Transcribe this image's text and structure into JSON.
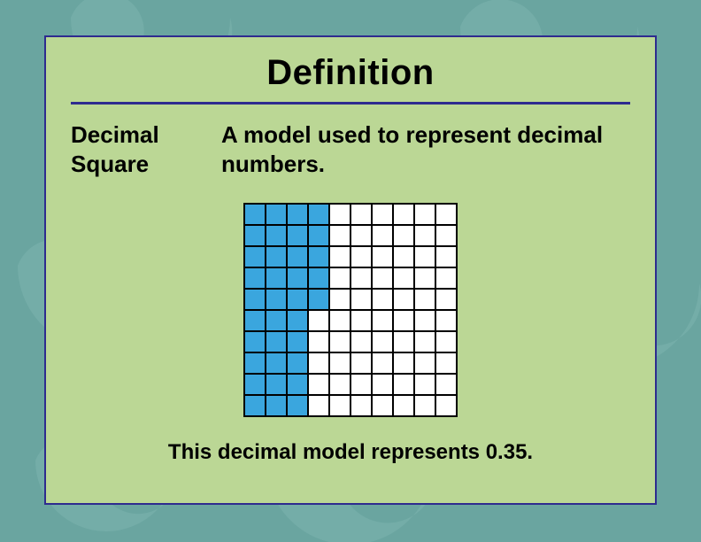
{
  "background": {
    "base_color": "#6aa5a0",
    "shape_color": "#7cb3ad",
    "shape_opacity": 0.6
  },
  "card": {
    "background_color": "#bbd795",
    "border_color": "#2e2b8f",
    "border_width": 2,
    "divider_color": "#2e2b8f",
    "divider_thickness": 3
  },
  "title": {
    "text": "Definition",
    "fontsize": 40,
    "fontweight": "bold",
    "color": "#000000"
  },
  "term": {
    "line1": "Decimal",
    "line2": "Square",
    "fontsize": 26,
    "fontweight": "bold",
    "color": "#000000"
  },
  "definition": {
    "text": "A model used to represent decimal numbers.",
    "fontsize": 26,
    "fontweight": "bold",
    "color": "#000000"
  },
  "decimal_grid": {
    "type": "heatmap",
    "rows": 10,
    "cols": 10,
    "cell_size": 24,
    "cell_border_color": "#000000",
    "filled_color": "#3aa6de",
    "unfilled_color": "#ffffff",
    "filled_cells_count": 35,
    "layout": "column_major_top_to_bottom",
    "filled_coords": [
      [
        0,
        0
      ],
      [
        1,
        0
      ],
      [
        2,
        0
      ],
      [
        3,
        0
      ],
      [
        4,
        0
      ],
      [
        5,
        0
      ],
      [
        6,
        0
      ],
      [
        7,
        0
      ],
      [
        8,
        0
      ],
      [
        9,
        0
      ],
      [
        0,
        1
      ],
      [
        1,
        1
      ],
      [
        2,
        1
      ],
      [
        3,
        1
      ],
      [
        4,
        1
      ],
      [
        5,
        1
      ],
      [
        6,
        1
      ],
      [
        7,
        1
      ],
      [
        8,
        1
      ],
      [
        9,
        1
      ],
      [
        0,
        2
      ],
      [
        1,
        2
      ],
      [
        2,
        2
      ],
      [
        3,
        2
      ],
      [
        4,
        2
      ],
      [
        5,
        2
      ],
      [
        6,
        2
      ],
      [
        7,
        2
      ],
      [
        8,
        2
      ],
      [
        9,
        2
      ],
      [
        0,
        3
      ],
      [
        1,
        3
      ],
      [
        2,
        3
      ],
      [
        3,
        3
      ],
      [
        4,
        3
      ]
    ]
  },
  "caption": {
    "text": "This decimal model represents 0.35.",
    "fontsize": 24,
    "fontweight": "bold",
    "color": "#000000"
  }
}
